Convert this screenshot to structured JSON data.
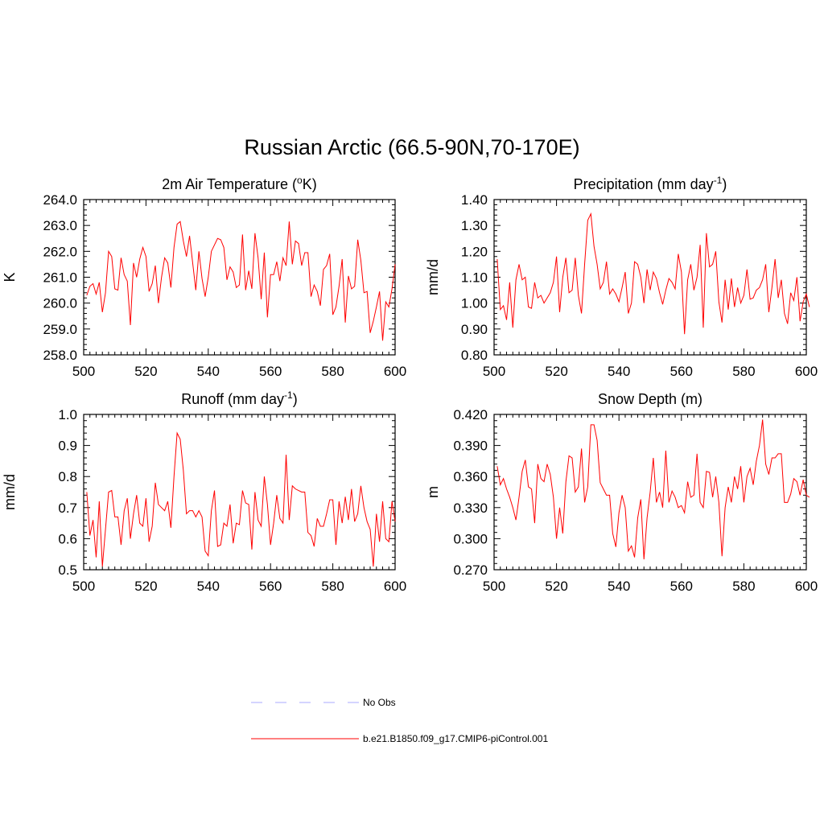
{
  "figure": {
    "title": "Russian Arctic (66.5-90N,70-170E)"
  },
  "chart_data": [
    {
      "type": "line",
      "title_parts": [
        "2m Air Temperature (",
        "o",
        "K)"
      ],
      "ylabel": "K",
      "xlim": [
        500,
        600
      ],
      "ylim": [
        258.0,
        264.0
      ],
      "xticks": [
        500,
        520,
        540,
        560,
        580,
        600
      ],
      "xtick_labels": [
        "500",
        "520",
        "540",
        "560",
        "580",
        "600"
      ],
      "yticks": [
        258.0,
        259.0,
        260.0,
        261.0,
        262.0,
        263.0,
        264.0
      ],
      "ytick_labels": [
        "258.0",
        "259.0",
        "260.0",
        "261.0",
        "262.0",
        "263.0",
        "264.0"
      ],
      "x_start": 501,
      "series": [
        {
          "name": "b.e21.B1850.f09_g17.CMIP6-piControl.001",
          "color": "#ff0000",
          "values": [
            260.3,
            260.65,
            260.75,
            260.35,
            260.8,
            259.65,
            260.4,
            262.0,
            261.8,
            260.55,
            260.5,
            261.75,
            261.1,
            260.85,
            259.15,
            261.55,
            261.0,
            261.7,
            262.15,
            261.8,
            260.45,
            260.75,
            261.45,
            260.0,
            261.0,
            261.75,
            261.55,
            260.6,
            262.15,
            263.05,
            263.15,
            262.4,
            261.8,
            262.6,
            261.55,
            260.5,
            262.0,
            260.95,
            260.25,
            261.0,
            262.0,
            262.25,
            262.5,
            262.45,
            262.15,
            260.9,
            261.4,
            261.2,
            260.6,
            260.7,
            262.65,
            260.5,
            261.25,
            260.55,
            262.7,
            261.75,
            260.15,
            261.95,
            259.45,
            261.1,
            261.1,
            261.6,
            260.85,
            261.75,
            261.45,
            263.15,
            261.5,
            262.4,
            262.3,
            261.45,
            261.95,
            261.95,
            260.25,
            260.7,
            260.45,
            259.9,
            261.3,
            261.45,
            261.9,
            259.55,
            259.85,
            260.65,
            261.7,
            259.25,
            261.05,
            260.55,
            260.65,
            262.45,
            261.65,
            260.4,
            260.45,
            258.85,
            259.3,
            259.85,
            260.45,
            258.55,
            260.05,
            259.85,
            260.55,
            261.5
          ]
        }
      ]
    },
    {
      "type": "line",
      "title_parts": [
        "Precipitation (mm day",
        "-1",
        ")"
      ],
      "ylabel": "mm/d",
      "xlim": [
        500,
        600
      ],
      "ylim": [
        0.8,
        1.4
      ],
      "xticks": [
        500,
        520,
        540,
        560,
        580,
        600
      ],
      "xtick_labels": [
        "500",
        "520",
        "540",
        "560",
        "580",
        "600"
      ],
      "yticks": [
        0.8,
        0.9,
        1.0,
        1.1,
        1.2,
        1.3,
        1.4
      ],
      "ytick_labels": [
        "0.80",
        "0.90",
        "1.00",
        "1.10",
        "1.20",
        "1.30",
        "1.40"
      ],
      "x_start": 501,
      "series": [
        {
          "name": "b.e21.B1850.f09_g17.CMIP6-piControl.001",
          "color": "#ff0000",
          "values": [
            1.17,
            0.975,
            0.99,
            0.935,
            1.08,
            0.905,
            1.09,
            1.15,
            1.09,
            1.1,
            0.985,
            0.98,
            1.08,
            1.02,
            1.03,
            1.0,
            1.02,
            1.04,
            1.08,
            1.18,
            0.965,
            1.1,
            1.175,
            1.04,
            1.05,
            1.175,
            1.03,
            0.96,
            1.15,
            1.32,
            1.345,
            1.22,
            1.15,
            1.055,
            1.08,
            1.16,
            1.035,
            1.055,
            1.035,
            1.005,
            1.06,
            1.12,
            0.96,
            1.0,
            1.16,
            1.15,
            1.1,
            1.0,
            1.13,
            1.05,
            1.12,
            1.095,
            1.04,
            0.995,
            1.05,
            1.095,
            1.08,
            1.055,
            1.19,
            1.12,
            0.88,
            1.09,
            1.15,
            1.05,
            1.1,
            1.225,
            0.905,
            1.27,
            1.14,
            1.15,
            1.2,
            1.005,
            0.925,
            1.09,
            0.975,
            1.095,
            0.985,
            1.06,
            1.0,
            1.03,
            1.13,
            1.015,
            1.02,
            1.05,
            1.06,
            1.09,
            1.15,
            0.965,
            1.06,
            1.17,
            1.02,
            1.09,
            0.96,
            0.92,
            1.04,
            1.01,
            1.1,
            0.93,
            1.005,
            1.035,
            0.985
          ]
        }
      ]
    },
    {
      "type": "line",
      "title_parts": [
        "Runoff (mm day",
        "-1",
        ")"
      ],
      "ylabel": "mm/d",
      "xlim": [
        500,
        600
      ],
      "ylim": [
        0.5,
        1.0
      ],
      "xticks": [
        500,
        520,
        540,
        560,
        580,
        600
      ],
      "xtick_labels": [
        "500",
        "520",
        "540",
        "560",
        "580",
        "600"
      ],
      "yticks": [
        0.5,
        0.6,
        0.7,
        0.8,
        0.9,
        1.0
      ],
      "ytick_labels": [
        "0.5",
        "0.6",
        "0.7",
        "0.8",
        "0.9",
        "1.0"
      ],
      "x_start": 501,
      "series": [
        {
          "name": "b.e21.B1850.f09_g17.CMIP6-piControl.001",
          "color": "#ff0000",
          "values": [
            0.75,
            0.61,
            0.66,
            0.54,
            0.72,
            0.51,
            0.63,
            0.75,
            0.755,
            0.67,
            0.67,
            0.58,
            0.69,
            0.73,
            0.6,
            0.68,
            0.74,
            0.65,
            0.64,
            0.73,
            0.59,
            0.64,
            0.78,
            0.71,
            0.7,
            0.69,
            0.72,
            0.635,
            0.8,
            0.94,
            0.92,
            0.82,
            0.68,
            0.69,
            0.69,
            0.67,
            0.69,
            0.67,
            0.56,
            0.545,
            0.69,
            0.755,
            0.575,
            0.58,
            0.65,
            0.64,
            0.71,
            0.585,
            0.65,
            0.645,
            0.755,
            0.715,
            0.71,
            0.565,
            0.75,
            0.66,
            0.64,
            0.8,
            0.71,
            0.58,
            0.65,
            0.74,
            0.665,
            0.65,
            0.87,
            0.66,
            0.77,
            0.76,
            0.755,
            0.75,
            0.75,
            0.62,
            0.61,
            0.575,
            0.665,
            0.64,
            0.64,
            0.68,
            0.725,
            0.725,
            0.58,
            0.72,
            0.65,
            0.735,
            0.66,
            0.76,
            0.655,
            0.68,
            0.77,
            0.7,
            0.655,
            0.63,
            0.51,
            0.68,
            0.59,
            0.72,
            0.6,
            0.59,
            0.72,
            0.655
          ]
        }
      ]
    },
    {
      "type": "line",
      "title_parts": [
        "Snow Depth (m)"
      ],
      "ylabel": "m",
      "xlim": [
        500,
        600
      ],
      "ylim": [
        0.27,
        0.42
      ],
      "xticks": [
        500,
        520,
        540,
        560,
        580,
        600
      ],
      "xtick_labels": [
        "500",
        "520",
        "540",
        "560",
        "580",
        "600"
      ],
      "yticks": [
        0.27,
        0.3,
        0.33,
        0.36,
        0.39,
        0.42
      ],
      "ytick_labels": [
        "0.270",
        "0.300",
        "0.330",
        "0.360",
        "0.390",
        "0.420"
      ],
      "x_start": 501,
      "series": [
        {
          "name": "b.e21.B1850.f09_g17.CMIP6-piControl.001",
          "color": "#ff0000",
          "values": [
            0.37,
            0.352,
            0.358,
            0.348,
            0.34,
            0.33,
            0.318,
            0.34,
            0.365,
            0.376,
            0.35,
            0.348,
            0.315,
            0.372,
            0.358,
            0.355,
            0.372,
            0.362,
            0.34,
            0.3,
            0.33,
            0.305,
            0.355,
            0.38,
            0.378,
            0.345,
            0.35,
            0.387,
            0.335,
            0.35,
            0.41,
            0.41,
            0.395,
            0.354,
            0.348,
            0.342,
            0.342,
            0.305,
            0.292,
            0.325,
            0.342,
            0.33,
            0.288,
            0.293,
            0.282,
            0.32,
            0.338,
            0.28,
            0.32,
            0.345,
            0.378,
            0.335,
            0.345,
            0.33,
            0.385,
            0.335,
            0.346,
            0.34,
            0.33,
            0.332,
            0.325,
            0.355,
            0.34,
            0.342,
            0.382,
            0.335,
            0.33,
            0.365,
            0.364,
            0.34,
            0.36,
            0.335,
            0.283,
            0.33,
            0.35,
            0.335,
            0.36,
            0.348,
            0.37,
            0.335,
            0.36,
            0.368,
            0.352,
            0.375,
            0.39,
            0.415,
            0.372,
            0.362,
            0.378,
            0.378,
            0.382,
            0.382,
            0.335,
            0.335,
            0.343,
            0.358,
            0.355,
            0.342,
            0.357,
            0.342,
            0.34
          ]
        }
      ]
    }
  ],
  "legend": {
    "placement": "bottom-center",
    "entries": [
      {
        "label": "No Obs",
        "color": "#aaaaff",
        "dash": "dashed"
      },
      {
        "label": "b.e21.B1850.f09_g17.CMIP6-piControl.001",
        "color": "#ff0000",
        "dash": "solid"
      }
    ]
  }
}
